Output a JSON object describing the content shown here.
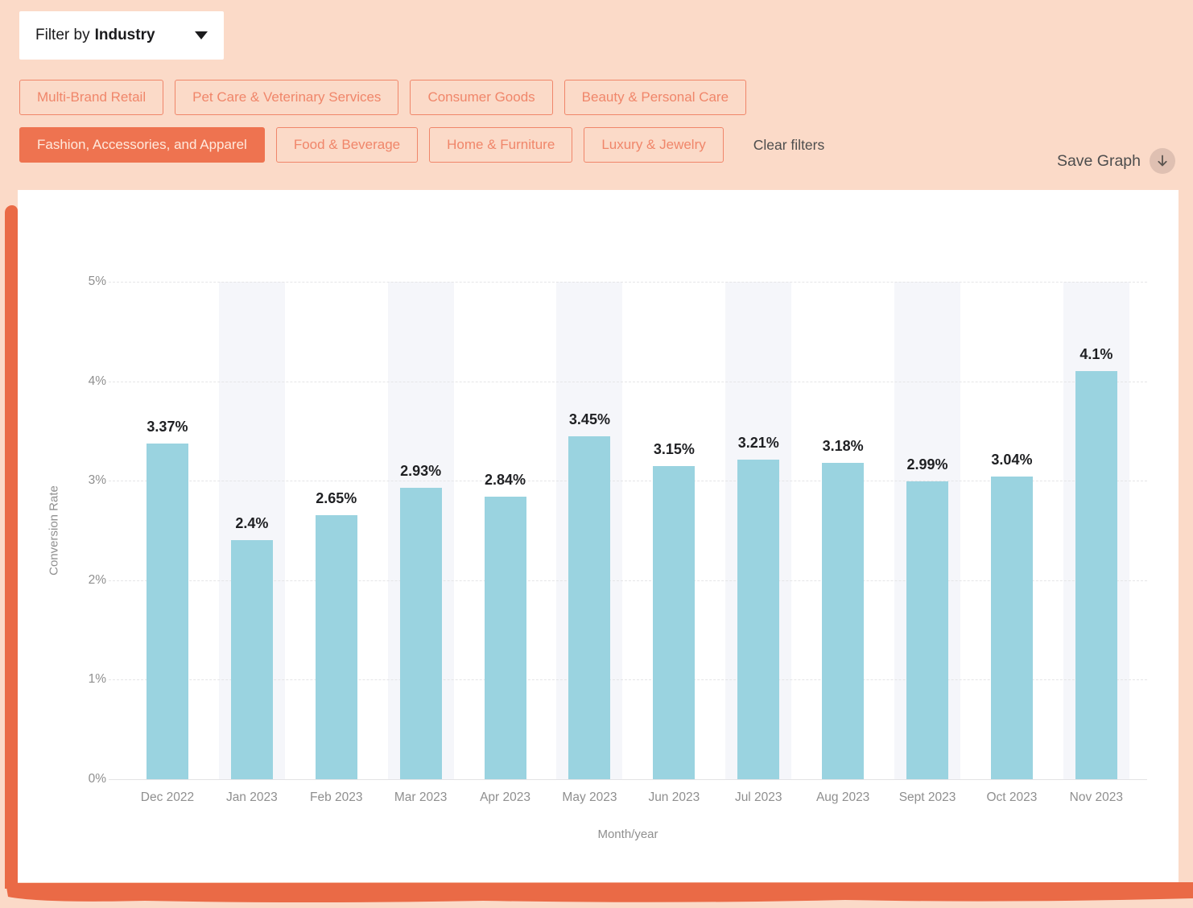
{
  "filter_bar": {
    "prefix": "Filter by",
    "category": "Industry"
  },
  "chips": {
    "row1": [
      {
        "label": "Multi-Brand Retail",
        "selected": false
      },
      {
        "label": "Pet Care & Veterinary Services",
        "selected": false
      },
      {
        "label": "Consumer Goods",
        "selected": false
      },
      {
        "label": "Beauty & Personal Care",
        "selected": false
      }
    ],
    "row2": [
      {
        "label": "Fashion, Accessories, and Apparel",
        "selected": true
      },
      {
        "label": "Food & Beverage",
        "selected": false
      },
      {
        "label": "Home & Furniture",
        "selected": false
      },
      {
        "label": "Luxury & Jewelry",
        "selected": false
      }
    ]
  },
  "actions": {
    "clear_filters": "Clear filters",
    "save_graph": "Save Graph",
    "save_icon": "download-arrow-icon"
  },
  "colors": {
    "page_background": "#fbdac8",
    "accent_brush": "#ea6a46",
    "chip_text_border": "#f0866a",
    "chip_selected_bg": "#ee7350",
    "chip_selected_text": "#ffeadd",
    "bar_fill": "#9ad3e0",
    "column_stripe": "#f5f6fa",
    "gridline": "#e5e5e7",
    "axis_text": "#8f8f8f",
    "value_text": "#1f2023",
    "action_text": "#4d4d4d",
    "save_icon_bg": "#dfc0b2"
  },
  "chart_data": {
    "type": "bar",
    "categories": [
      "Dec 2022",
      "Jan 2023",
      "Feb 2023",
      "Mar 2023",
      "Apr 2023",
      "May 2023",
      "Jun 2023",
      "Jul 2023",
      "Aug 2023",
      "Sept 2023",
      "Oct 2023",
      "Nov 2023"
    ],
    "values": [
      3.37,
      2.4,
      2.65,
      2.93,
      2.84,
      3.45,
      3.15,
      3.21,
      3.18,
      2.99,
      3.04,
      4.1
    ],
    "value_labels": [
      "3.37%",
      "2.4%",
      "2.65%",
      "2.93%",
      "2.84%",
      "3.45%",
      "3.15%",
      "3.21%",
      "3.18%",
      "2.99%",
      "3.04%",
      "4.1%"
    ],
    "title": "",
    "xlabel": "Month/year",
    "ylabel": "Conversion Rate",
    "ylim": [
      0,
      5
    ],
    "yticks": [
      "0%",
      "1%",
      "2%",
      "3%",
      "4%",
      "5%"
    ],
    "grid": "horizontal-dashed",
    "legend": "none",
    "striped_columns": [
      1,
      3,
      5,
      7,
      9,
      11
    ]
  }
}
